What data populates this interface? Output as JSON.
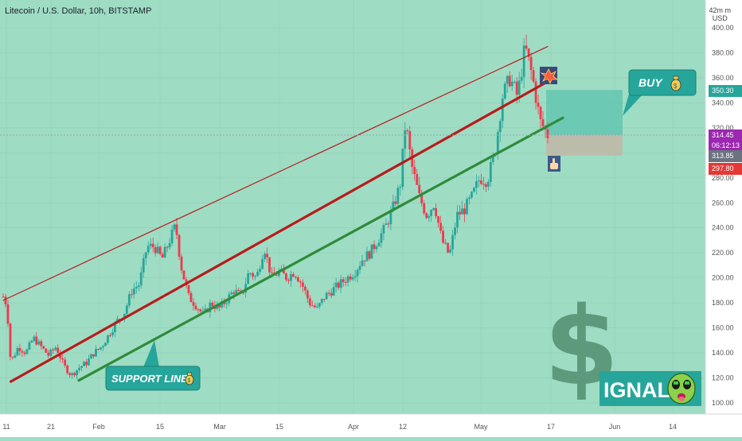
{
  "header": {
    "symbol_title": "Litecoin / U.S. Dollar, 10h, BITSTAMP",
    "currency_top": "42m m",
    "currency": "USD"
  },
  "price_badges": {
    "target": "350.30",
    "current": "314.45",
    "countdown": "06:12:13",
    "entry": "313.85",
    "stop": "297.80"
  },
  "annotations": {
    "buy_label": "BUY",
    "support_label": "SUPPORT LINE",
    "signal_text": "IGNAL",
    "dollar_glyph": "$"
  },
  "colors": {
    "background": "#9fdcc4",
    "candle_up": "#26a69a",
    "candle_down": "#ef3a4c",
    "upper_channel": "#b71c1c",
    "mid_channel": "#b71c1c",
    "support_line": "#2e8b3a",
    "callout": "#26a69a"
  },
  "icons": [
    "moneybag-icon",
    "explosion-icon",
    "pointing-hand-icon",
    "alien-face-icon"
  ],
  "chart_data": {
    "type": "candlestick",
    "title": "Litecoin / U.S. Dollar, 10h, BITSTAMP",
    "y_axis": {
      "ticks": [
        100,
        120,
        140,
        160,
        180,
        200,
        220,
        240,
        260,
        280,
        300,
        320,
        340,
        360,
        380,
        400
      ],
      "ylim": [
        95,
        420
      ],
      "unit": "USD",
      "position": "right"
    },
    "x_axis": {
      "ticks": [
        "11",
        "21",
        "Feb",
        "15",
        "Mar",
        "15",
        "Apr",
        "12",
        "May",
        "17",
        "Jun",
        "14"
      ]
    },
    "price_path": [
      {
        "t": 0,
        "p": 185
      },
      {
        "t": 0.5,
        "p": 178
      },
      {
        "t": 1,
        "p": 132
      },
      {
        "t": 2,
        "p": 145
      },
      {
        "t": 3,
        "p": 140
      },
      {
        "t": 4,
        "p": 152
      },
      {
        "t": 5,
        "p": 145
      },
      {
        "t": 6,
        "p": 138
      },
      {
        "t": 7,
        "p": 145
      },
      {
        "t": 8,
        "p": 130
      },
      {
        "t": 9,
        "p": 122
      },
      {
        "t": 10,
        "p": 128
      },
      {
        "t": 11,
        "p": 132
      },
      {
        "t": 12,
        "p": 140
      },
      {
        "t": 13,
        "p": 145
      },
      {
        "t": 14,
        "p": 155
      },
      {
        "t": 15,
        "p": 165
      },
      {
        "t": 16,
        "p": 172
      },
      {
        "t": 17,
        "p": 190
      },
      {
        "t": 18,
        "p": 195
      },
      {
        "t": 19,
        "p": 225
      },
      {
        "t": 20,
        "p": 225
      },
      {
        "t": 21,
        "p": 215
      },
      {
        "t": 22,
        "p": 230
      },
      {
        "t": 22.8,
        "p": 242
      },
      {
        "t": 23.5,
        "p": 210
      },
      {
        "t": 24.5,
        "p": 185
      },
      {
        "t": 25.5,
        "p": 178
      },
      {
        "t": 26.5,
        "p": 170
      },
      {
        "t": 27.5,
        "p": 180
      },
      {
        "t": 28.5,
        "p": 175
      },
      {
        "t": 29.5,
        "p": 182
      },
      {
        "t": 30.5,
        "p": 190
      },
      {
        "t": 31.5,
        "p": 185
      },
      {
        "t": 32.5,
        "p": 205
      },
      {
        "t": 33.5,
        "p": 200
      },
      {
        "t": 34.5,
        "p": 225
      },
      {
        "t": 35.5,
        "p": 200
      },
      {
        "t": 36.5,
        "p": 205
      },
      {
        "t": 37.5,
        "p": 200
      },
      {
        "t": 38.5,
        "p": 205
      },
      {
        "t": 39.5,
        "p": 195
      },
      {
        "t": 40.5,
        "p": 180
      },
      {
        "t": 41.5,
        "p": 175
      },
      {
        "t": 42.5,
        "p": 185
      },
      {
        "t": 43.5,
        "p": 190
      },
      {
        "t": 44.5,
        "p": 195
      },
      {
        "t": 45.5,
        "p": 200
      },
      {
        "t": 46.5,
        "p": 205
      },
      {
        "t": 47.5,
        "p": 215
      },
      {
        "t": 48.5,
        "p": 220
      },
      {
        "t": 49.5,
        "p": 230
      },
      {
        "t": 50.5,
        "p": 240
      },
      {
        "t": 51.5,
        "p": 255
      },
      {
        "t": 52.5,
        "p": 275
      },
      {
        "t": 53.2,
        "p": 325
      },
      {
        "t": 54,
        "p": 290
      },
      {
        "t": 55,
        "p": 265
      },
      {
        "t": 56,
        "p": 250
      },
      {
        "t": 57,
        "p": 260
      },
      {
        "t": 58,
        "p": 230
      },
      {
        "t": 59,
        "p": 218
      },
      {
        "t": 60,
        "p": 250
      },
      {
        "t": 61,
        "p": 255
      },
      {
        "t": 62,
        "p": 265
      },
      {
        "t": 63,
        "p": 280
      },
      {
        "t": 64,
        "p": 278
      },
      {
        "t": 65,
        "p": 300
      },
      {
        "t": 66,
        "p": 345
      },
      {
        "t": 67,
        "p": 360
      },
      {
        "t": 68,
        "p": 345
      },
      {
        "t": 69,
        "p": 385
      },
      {
        "t": 70,
        "p": 360
      },
      {
        "t": 71,
        "p": 325
      },
      {
        "t": 72,
        "p": 314.45
      }
    ],
    "lines": [
      {
        "name": "upper channel",
        "from": [
          0,
          182
        ],
        "to": [
          72,
          385
        ]
      },
      {
        "name": "channel middle",
        "from": [
          1,
          117
        ],
        "to": [
          72,
          357
        ]
      },
      {
        "name": "SUPPORT LINE",
        "from": [
          10,
          118
        ],
        "to": [
          74,
          328
        ]
      }
    ],
    "zones": [
      {
        "name": "target zone",
        "from_price": 314.45,
        "to_price": 350.3
      },
      {
        "name": "stop zone",
        "from_price": 297.8,
        "to_price": 314.45
      }
    ],
    "grid": true,
    "legend": "none"
  }
}
